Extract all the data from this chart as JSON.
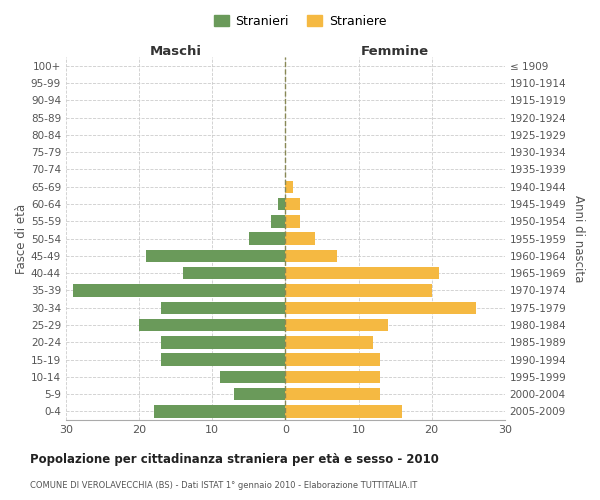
{
  "age_groups": [
    "0-4",
    "5-9",
    "10-14",
    "15-19",
    "20-24",
    "25-29",
    "30-34",
    "35-39",
    "40-44",
    "45-49",
    "50-54",
    "55-59",
    "60-64",
    "65-69",
    "70-74",
    "75-79",
    "80-84",
    "85-89",
    "90-94",
    "95-99",
    "100+"
  ],
  "birth_years": [
    "2005-2009",
    "2000-2004",
    "1995-1999",
    "1990-1994",
    "1985-1989",
    "1980-1984",
    "1975-1979",
    "1970-1974",
    "1965-1969",
    "1960-1964",
    "1955-1959",
    "1950-1954",
    "1945-1949",
    "1940-1944",
    "1935-1939",
    "1930-1934",
    "1925-1929",
    "1920-1924",
    "1915-1919",
    "1910-1914",
    "≤ 1909"
  ],
  "males": [
    18,
    7,
    9,
    17,
    17,
    20,
    17,
    29,
    14,
    19,
    5,
    2,
    1,
    0,
    0,
    0,
    0,
    0,
    0,
    0,
    0
  ],
  "females": [
    16,
    13,
    13,
    13,
    12,
    14,
    26,
    20,
    21,
    7,
    4,
    2,
    2,
    1,
    0,
    0,
    0,
    0,
    0,
    0,
    0
  ],
  "male_color": "#6a9a5a",
  "female_color": "#f5b942",
  "background_color": "#ffffff",
  "grid_color": "#cccccc",
  "title": "Popolazione per cittadinanza straniera per età e sesso - 2010",
  "subtitle": "COMUNE DI VEROLAVECCHIA (BS) - Dati ISTAT 1° gennaio 2010 - Elaborazione TUTTITALIA.IT",
  "legend_male": "Stranieri",
  "legend_female": "Straniere",
  "xlabel_left": "Maschi",
  "xlabel_right": "Femmine",
  "ylabel_left": "Fasce di età",
  "ylabel_right": "Anni di nascita",
  "xlim": 30,
  "xticks": [
    -30,
    -20,
    -10,
    0,
    10,
    20,
    30
  ]
}
